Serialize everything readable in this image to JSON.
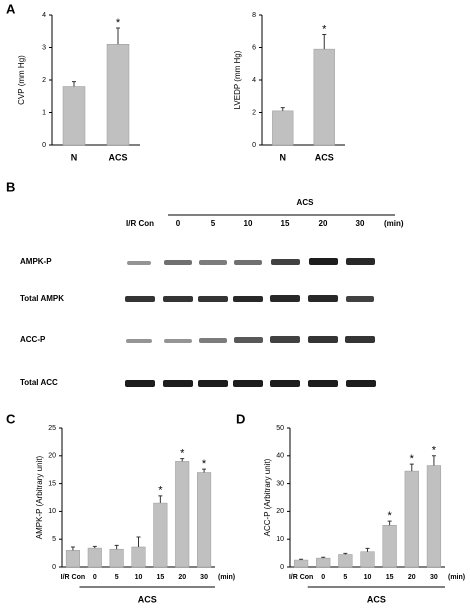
{
  "panel_labels": [
    "A",
    "B",
    "C",
    "D"
  ],
  "blot": {
    "header": "ACS",
    "lanes": [
      "I/R Con",
      "0",
      "5",
      "10",
      "15",
      "20",
      "30"
    ],
    "unit": "(min)",
    "rows": [
      "AMPK-P",
      "Total AMPK",
      "ACC-P",
      "Total ACC"
    ]
  },
  "chart_data": [
    {
      "type": "bar",
      "y_label": "CVP (mm Hg)",
      "categories": [
        "N",
        "ACS"
      ],
      "values": [
        1.8,
        3.1
      ],
      "errors": [
        0.15,
        0.5
      ],
      "significance": [
        null,
        "*"
      ],
      "color": "#c0c0c0",
      "ylim": [
        0,
        4
      ],
      "yticks": [
        0,
        1,
        2,
        3,
        4
      ]
    },
    {
      "type": "bar",
      "y_label": "LVEDP (mm Hg)",
      "categories": [
        "N",
        "ACS"
      ],
      "values": [
        2.1,
        5.9
      ],
      "errors": [
        0.2,
        0.9
      ],
      "significance": [
        null,
        "*"
      ],
      "color": "#c0c0c0",
      "ylim": [
        0,
        8
      ],
      "yticks": [
        0,
        2,
        4,
        6,
        8
      ]
    },
    {
      "type": "bar",
      "y_label": "AMPK-P (Arbitrary unit)",
      "categories": [
        "I/R Con",
        "0",
        "5",
        "10",
        "15",
        "20",
        "30"
      ],
      "x_unit": "(min)",
      "group_label": "ACS",
      "values": [
        3.0,
        3.4,
        3.2,
        3.6,
        11.5,
        19.0,
        17.0
      ],
      "errors": [
        0.6,
        0.3,
        0.7,
        1.8,
        1.3,
        0.5,
        0.6
      ],
      "significance": [
        null,
        null,
        null,
        null,
        "*",
        "*",
        "*"
      ],
      "color": "#c0c0c0",
      "ylim": [
        0,
        25
      ],
      "yticks": [
        0,
        5,
        10,
        15,
        20,
        25
      ]
    },
    {
      "type": "bar",
      "y_label": "ACC-P (Arbitrary unit)",
      "categories": [
        "I/R Con",
        "0",
        "5",
        "10",
        "15",
        "20",
        "30"
      ],
      "x_unit": "(min)",
      "group_label": "ACS",
      "values": [
        2.5,
        3.2,
        4.5,
        5.5,
        15,
        34.5,
        36.5
      ],
      "errors": [
        0.3,
        0.3,
        0.4,
        1.2,
        1.5,
        2.5,
        3.5
      ],
      "significance": [
        null,
        null,
        null,
        null,
        "*",
        "*",
        "*"
      ],
      "color": "#c0c0c0",
      "ylim": [
        0,
        50
      ],
      "yticks": [
        0,
        10,
        20,
        30,
        40,
        50
      ]
    }
  ]
}
